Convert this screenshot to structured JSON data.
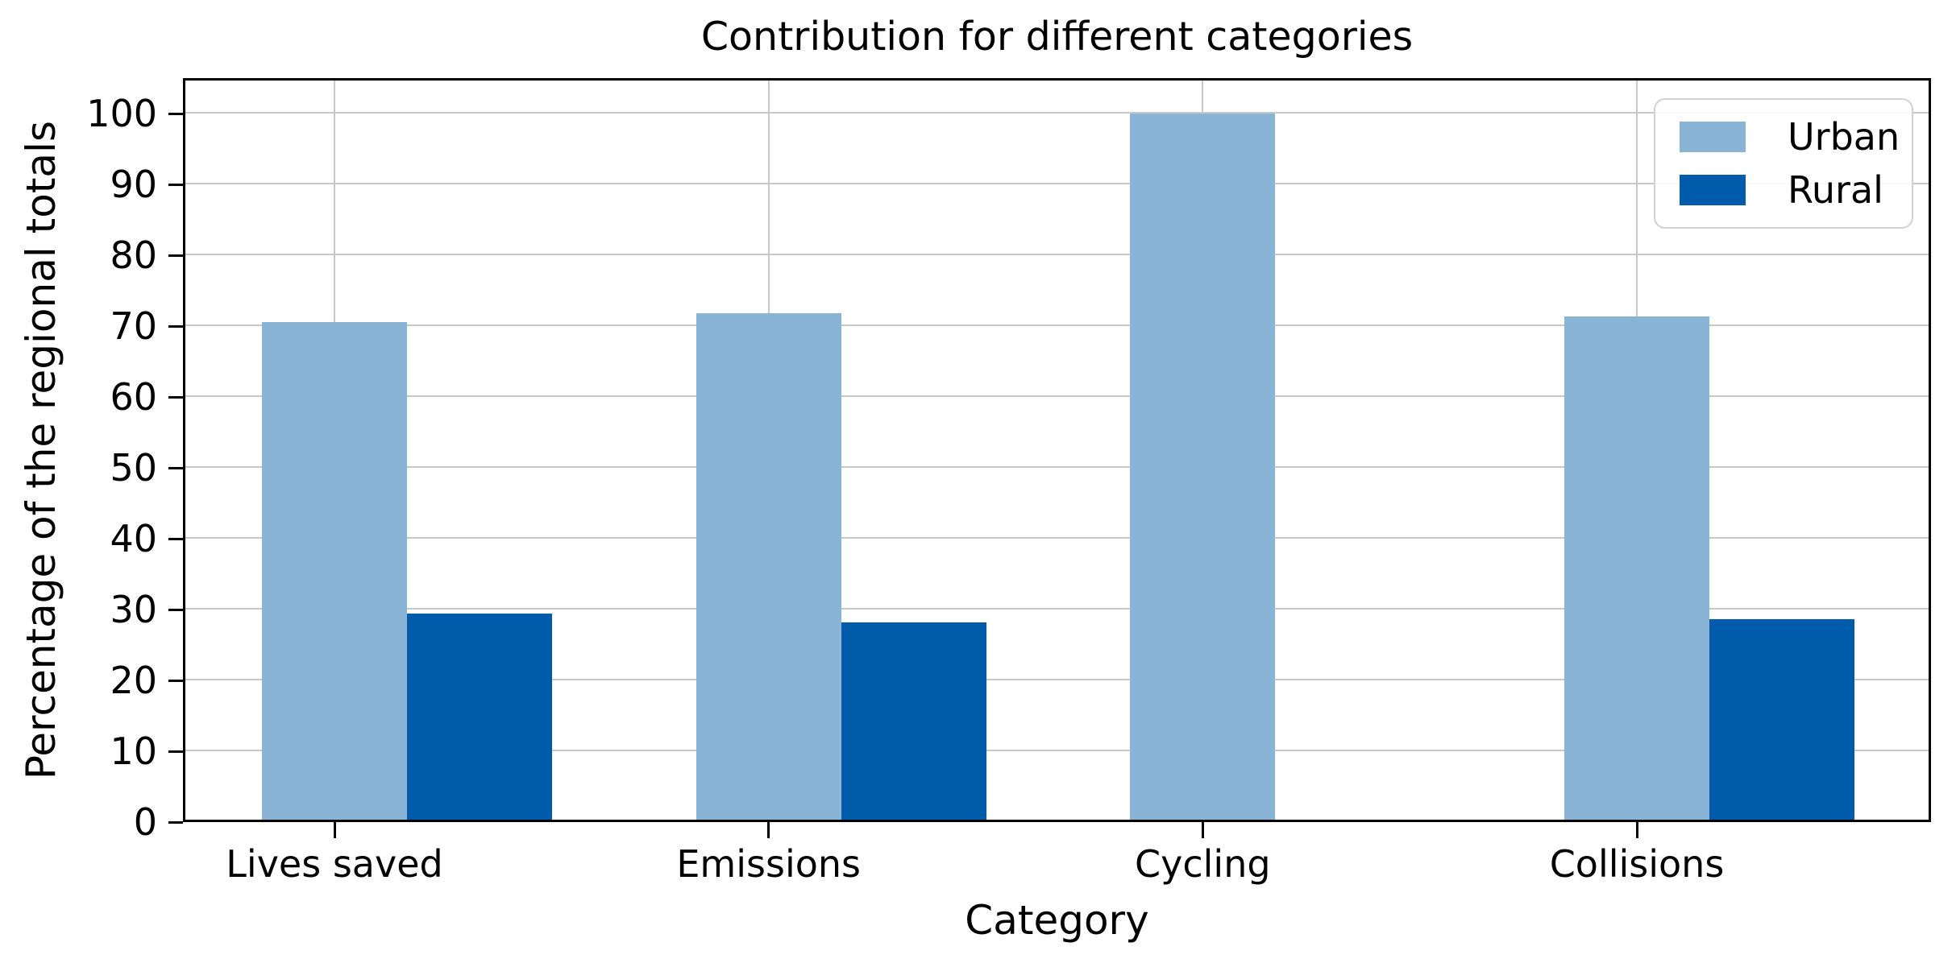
{
  "title": "Contribution for different categories",
  "xlabel": "Category",
  "ylabel": "Percentage of the regional totals",
  "legend": {
    "items": [
      {
        "label": "Urban"
      },
      {
        "label": "Rural"
      }
    ]
  },
  "chart_data": {
    "type": "bar",
    "title": "Contribution for different categories",
    "xlabel": "Category",
    "ylabel": "Percentage of the regional totals",
    "categories": [
      "Lives saved",
      "Emissions",
      "Cycling",
      "Collisions"
    ],
    "series": [
      {
        "name": "Urban",
        "color": "#8ab4d5",
        "values": [
          70.6,
          71.8,
          100,
          71.4
        ]
      },
      {
        "name": "Rural",
        "color": "#005bab",
        "values": [
          29.4,
          28.2,
          0,
          28.6
        ]
      }
    ],
    "yticks": [
      0,
      10,
      20,
      30,
      40,
      50,
      60,
      70,
      80,
      90,
      100
    ],
    "ylim": [
      0,
      105
    ],
    "grid": true,
    "grid_color": "#c8c8c8",
    "legend_position": "upper right",
    "bar_arrangement": "grouped, Urban bar centered on category tick, Rural bar adjacent to its right"
  }
}
